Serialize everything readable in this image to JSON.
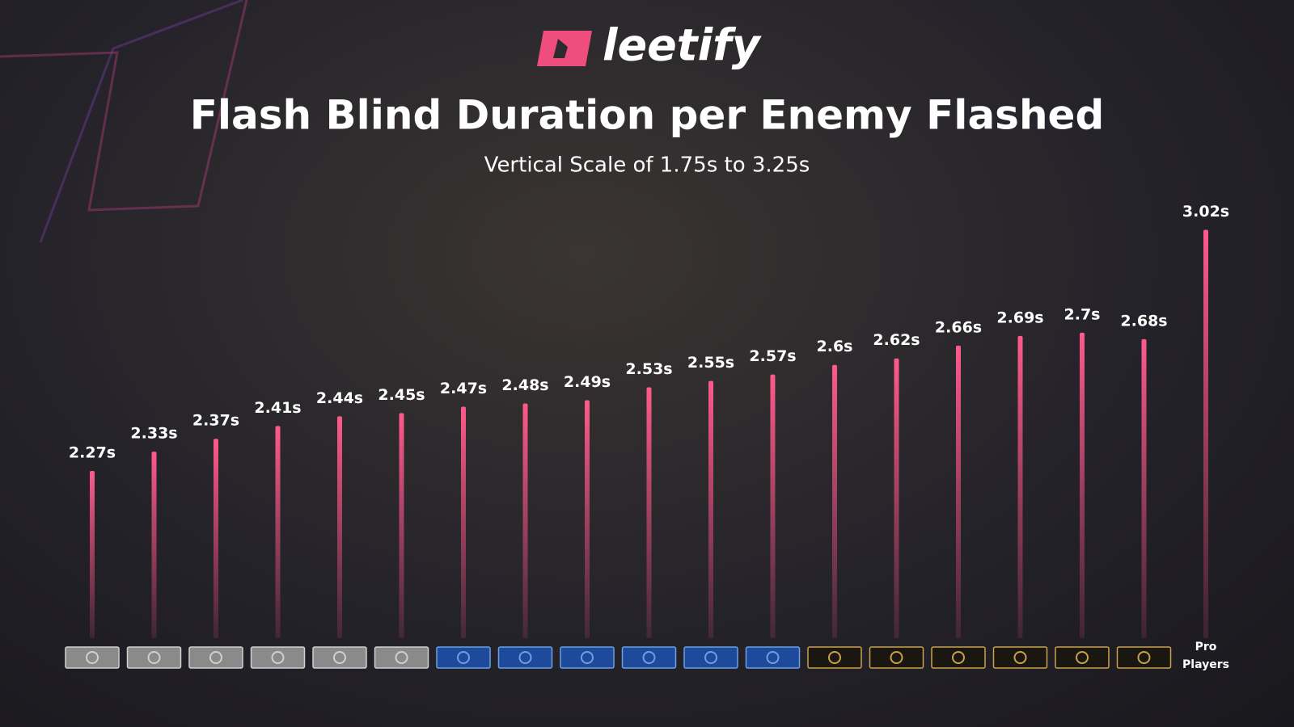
{
  "logo": "leetify",
  "chart_data": {
    "type": "bar",
    "title": "Flash Blind Duration per Enemy Flashed",
    "subtitle": "Vertical Scale of 1.75s to 3.25s",
    "categories": [
      null,
      null,
      null,
      null,
      null,
      null,
      null,
      null,
      null,
      null,
      null,
      null,
      null,
      null,
      null,
      null,
      null,
      null,
      "Pro Players"
    ],
    "values": [
      2.27,
      2.33,
      2.37,
      2.41,
      2.44,
      2.45,
      2.47,
      2.48,
      2.49,
      2.53,
      2.55,
      2.57,
      2.6,
      2.62,
      2.66,
      2.69,
      2.7,
      2.68,
      3.02
    ],
    "value_labels": [
      "2.27s",
      "2.33s",
      "2.37s",
      "2.41s",
      "2.44s",
      "2.45s",
      "2.47s",
      "2.48s",
      "2.49s",
      "2.53s",
      "2.55s",
      "2.57s",
      "2.6s",
      "2.62s",
      "2.66s",
      "2.69s",
      "2.7s",
      "2.68s",
      "3.02s"
    ],
    "color": "#ee4d7e",
    "ylim": [
      1.75,
      3.25
    ]
  }
}
